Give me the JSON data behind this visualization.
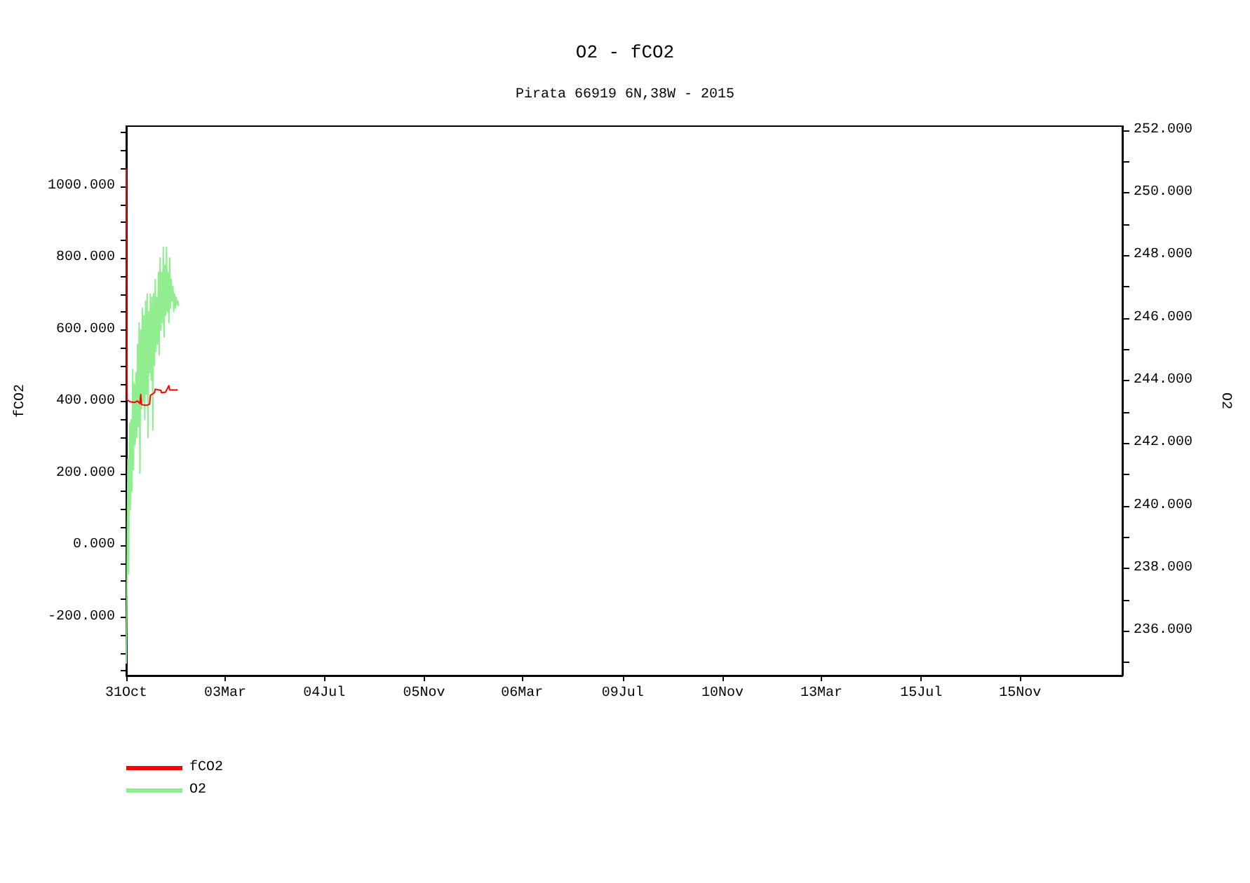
{
  "chart_data": {
    "type": "line",
    "title": "O2 - fCO2",
    "subtitle": "Pirata 66919 6N,38W - 2015",
    "ylabel": "fCO2",
    "y2label": "O2",
    "xlim": [
      "2014-10-31",
      "2018-03-22"
    ],
    "xticks": [
      {
        "value": "2014-10-31",
        "label": "31Oct"
      },
      {
        "value": "2015-03-03",
        "label": "03Mar"
      },
      {
        "value": "2015-07-04",
        "label": "04Jul"
      },
      {
        "value": "2015-11-05",
        "label": "05Nov"
      },
      {
        "value": "2016-03-06",
        "label": "06Mar"
      },
      {
        "value": "2016-07-09",
        "label": "09Jul"
      },
      {
        "value": "2016-11-10",
        "label": "10Nov"
      },
      {
        "value": "2017-03-13",
        "label": "13Mar"
      },
      {
        "value": "2017-07-15",
        "label": "15Jul"
      },
      {
        "value": "2017-11-15",
        "label": "15Nov"
      }
    ],
    "ylim": [
      -363,
      1168
    ],
    "yticks": [
      {
        "value": -350,
        "label": null
      },
      {
        "value": -300,
        "label": null
      },
      {
        "value": -250,
        "label": null
      },
      {
        "value": -200,
        "label": "-200.000"
      },
      {
        "value": -150,
        "label": null
      },
      {
        "value": -100,
        "label": null
      },
      {
        "value": -50,
        "label": null
      },
      {
        "value": 0,
        "label": "0.000"
      },
      {
        "value": 50,
        "label": null
      },
      {
        "value": 100,
        "label": null
      },
      {
        "value": 150,
        "label": null
      },
      {
        "value": 200,
        "label": "200.000"
      },
      {
        "value": 250,
        "label": null
      },
      {
        "value": 300,
        "label": null
      },
      {
        "value": 350,
        "label": null
      },
      {
        "value": 400,
        "label": "400.000"
      },
      {
        "value": 450,
        "label": null
      },
      {
        "value": 500,
        "label": null
      },
      {
        "value": 550,
        "label": null
      },
      {
        "value": 600,
        "label": "600.000"
      },
      {
        "value": 650,
        "label": null
      },
      {
        "value": 700,
        "label": null
      },
      {
        "value": 750,
        "label": null
      },
      {
        "value": 800,
        "label": "800.000"
      },
      {
        "value": 850,
        "label": null
      },
      {
        "value": 900,
        "label": null
      },
      {
        "value": 950,
        "label": null
      },
      {
        "value": 1000,
        "label": "1000.000"
      },
      {
        "value": 1050,
        "label": null
      },
      {
        "value": 1100,
        "label": null
      },
      {
        "value": 1150,
        "label": null
      }
    ],
    "y2lim": [
      234.57,
      252.13
    ],
    "y2ticks": [
      {
        "value": 235,
        "label": null
      },
      {
        "value": 236,
        "label": "236.000"
      },
      {
        "value": 237,
        "label": null
      },
      {
        "value": 238,
        "label": "238.000"
      },
      {
        "value": 239,
        "label": null
      },
      {
        "value": 240,
        "label": "240.000"
      },
      {
        "value": 241,
        "label": null
      },
      {
        "value": 242,
        "label": "242.000"
      },
      {
        "value": 243,
        "label": null
      },
      {
        "value": 244,
        "label": "244.000"
      },
      {
        "value": 245,
        "label": null
      },
      {
        "value": 246,
        "label": "246.000"
      },
      {
        "value": 247,
        "label": null
      },
      {
        "value": 248,
        "label": "248.000"
      },
      {
        "value": 249,
        "label": null
      },
      {
        "value": 250,
        "label": "250.000"
      },
      {
        "value": 251,
        "label": null
      },
      {
        "value": 252,
        "label": "252.000"
      }
    ],
    "grid": false,
    "legend": "bottom left",
    "marker": "none",
    "line_style": "solid",
    "series": [
      {
        "name": "fCO2",
        "color": "#ff0000",
        "axis": "y",
        "x": [
          "2014-10-31",
          "2014-11-01",
          "2014-11-05",
          "2014-11-10",
          "2014-11-14",
          "2014-11-17",
          "2014-11-18",
          "2014-11-19",
          "2014-11-25",
          "2014-11-29",
          "2014-11-30",
          "2014-12-05",
          "2014-12-06",
          "2014-12-13",
          "2014-12-14",
          "2014-12-19",
          "2014-12-20",
          "2014-12-23",
          "2014-12-24",
          "2015-01-03"
        ],
        "values": [
          1050,
          405,
          400,
          398,
          402,
          395,
          420,
          392,
          390,
          393,
          418,
          425,
          435,
          432,
          425,
          427,
          432,
          445,
          433,
          433
        ]
      },
      {
        "name": "O2",
        "color": "#90ee90",
        "axis": "y2",
        "x": [
          "2014-10-31",
          "2014-11-01",
          "2014-11-02",
          "2014-11-03",
          "2014-11-04",
          "2014-11-05",
          "2014-11-06",
          "2014-11-07",
          "2014-11-08",
          "2014-11-09",
          "2014-11-10",
          "2014-11-11",
          "2014-11-12",
          "2014-11-13",
          "2014-11-14",
          "2014-11-15",
          "2014-11-16",
          "2014-11-17",
          "2014-11-18",
          "2014-11-19",
          "2014-11-20",
          "2014-11-21",
          "2014-11-22",
          "2014-11-23",
          "2014-11-24",
          "2014-11-25",
          "2014-11-26",
          "2014-11-27",
          "2014-11-28",
          "2014-11-29",
          "2014-11-30",
          "2014-12-01",
          "2014-12-02",
          "2014-12-03",
          "2014-12-04",
          "2014-12-05",
          "2014-12-06",
          "2014-12-07",
          "2014-12-08",
          "2014-12-09",
          "2014-12-10",
          "2014-12-11",
          "2014-12-12",
          "2014-12-13",
          "2014-12-14",
          "2014-12-15",
          "2014-12-16",
          "2014-12-17",
          "2014-12-18",
          "2014-12-19",
          "2014-12-20",
          "2014-12-21",
          "2014-12-22",
          "2014-12-23",
          "2014-12-24",
          "2014-12-25",
          "2014-12-26",
          "2014-12-27",
          "2014-12-28",
          "2014-12-29",
          "2014-12-30",
          "2014-12-31",
          "2015-01-01",
          "2015-01-02",
          "2015-01-03",
          "2015-01-04"
        ],
        "values": [
          234.95,
          237.7,
          241.49,
          237.82,
          242.64,
          239.88,
          242.75,
          240.46,
          244.36,
          241.15,
          243.9,
          241.95,
          244.25,
          242.18,
          245.16,
          242.52,
          245.85,
          241.03,
          245.62,
          243.1,
          246.31,
          243.33,
          246.08,
          242.75,
          246.54,
          243.56,
          246.77,
          242.18,
          246.2,
          244.25,
          246.77,
          244.02,
          246.66,
          242.41,
          246.77,
          244.48,
          247.23,
          244.93,
          246.66,
          245.16,
          247.46,
          244.82,
          247.92,
          245.62,
          247.46,
          245.85,
          248.26,
          245.39,
          247.69,
          246.08,
          248.26,
          246.2,
          247.46,
          245.85,
          247.92,
          246.31,
          247.23,
          246.54,
          247.0,
          246.2,
          246.77,
          246.31,
          246.66,
          246.43,
          246.54,
          246.37
        ]
      }
    ]
  }
}
